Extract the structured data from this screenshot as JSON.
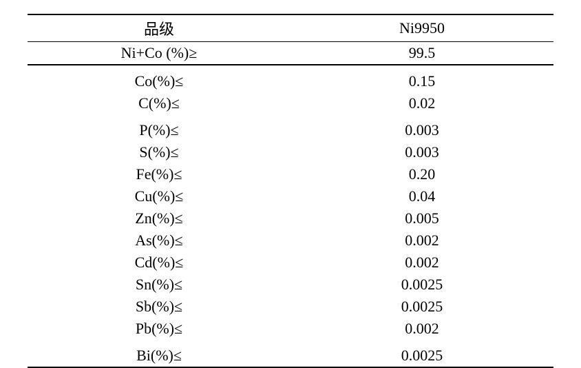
{
  "table": {
    "header": {
      "label_col": "品级",
      "value_col": "Ni9950"
    },
    "nico_row": {
      "label": "Ni+Co (%)≥",
      "value": "99.5"
    },
    "rows": [
      {
        "label": "Co(%)≤",
        "value": "0.15",
        "group_start": true
      },
      {
        "label": "C(%)≤",
        "value": "0.02"
      },
      {
        "label": "P(%)≤",
        "value": "0.003",
        "group_start": true
      },
      {
        "label": "S(%)≤",
        "value": "0.003"
      },
      {
        "label": "Fe(%)≤",
        "value": "0.20"
      },
      {
        "label": "Cu(%)≤",
        "value": "0.04"
      },
      {
        "label": "Zn(%)≤",
        "value": "0.005"
      },
      {
        "label": "As(%)≤",
        "value": "0.002"
      },
      {
        "label": "Cd(%)≤",
        "value": "0.002"
      },
      {
        "label": "Sn(%)≤",
        "value": "0.0025"
      },
      {
        "label": "Sb(%)≤",
        "value": "0.0025"
      },
      {
        "label": "Pb(%)≤",
        "value": "0.002"
      },
      {
        "label": "Bi(%)≤",
        "value": "0.0025",
        "group_start": true
      }
    ],
    "styling": {
      "font_family": "Times New Roman",
      "font_size": 22,
      "text_color": "#000000",
      "background_color": "#ffffff",
      "header_border_width": 2,
      "separator_border_width": 1,
      "border_color": "#000000",
      "col_widths": [
        "50%",
        "50%"
      ],
      "text_align": "center"
    }
  }
}
